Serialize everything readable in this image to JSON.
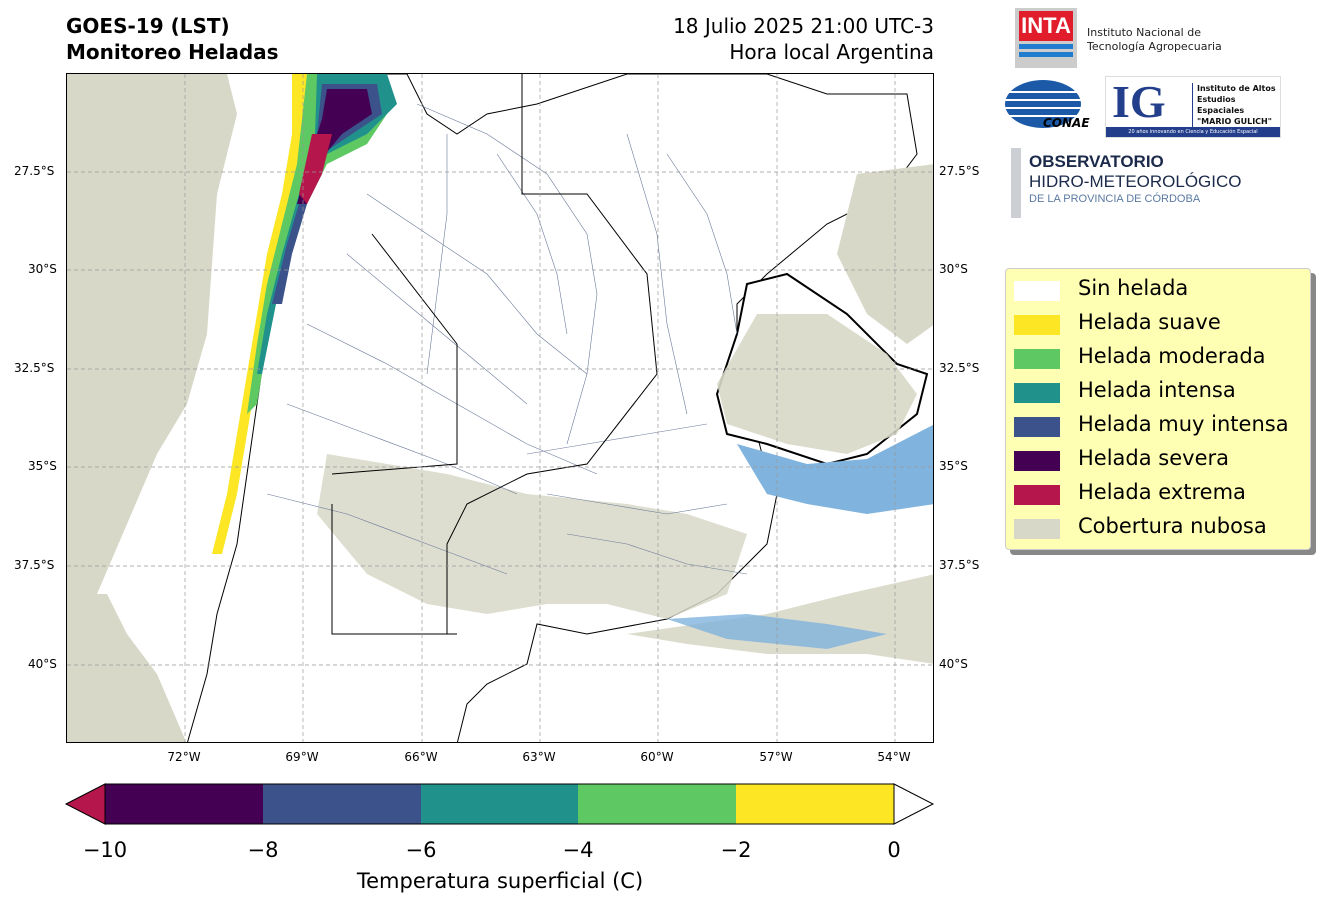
{
  "header": {
    "title_line1": "GOES-19 (LST)",
    "title_line2": "Monitoreo Heladas",
    "date_line": "18 Julio 2025 21:00 UTC-3",
    "local_line": "Hora local Argentina"
  },
  "map": {
    "lat_ticks": [
      "27.5°S",
      "30°S",
      "32.5°S",
      "35°S",
      "37.5°S",
      "40°S"
    ],
    "lon_ticks": [
      "72°W",
      "69°W",
      "66°W",
      "63°W",
      "60°W",
      "57°W",
      "54°W"
    ]
  },
  "logos": {
    "inta_mark": "INTA",
    "inta_name_1": "Instituto Nacional de",
    "inta_name_2": "Tecnología Agropecuaria",
    "conae": "CONAE",
    "ig_mark": "IG",
    "ig_name_1": "Instituto de Altos",
    "ig_name_2": "Estudios Espaciales",
    "ig_name_3": "\"MARIO GULICH\"",
    "ig_tagline": "20 años innovando en Ciencia y Educación Espacial",
    "obs_1": "OBSERVATORIO",
    "obs_2": "HIDRO-METEOROLÓGICO",
    "obs_3": "DE LA PROVINCIA DE CÓRDOBA"
  },
  "legend": {
    "items": [
      {
        "label": "Sin helada",
        "color": "#ffffff"
      },
      {
        "label": "Helada suave",
        "color": "#fde725"
      },
      {
        "label": "Helada moderada",
        "color": "#5ec962"
      },
      {
        "label": "Helada intensa",
        "color": "#21918c"
      },
      {
        "label": "Helada muy intensa",
        "color": "#3b528b"
      },
      {
        "label": "Helada severa",
        "color": "#440154"
      },
      {
        "label": "Helada extrema",
        "color": "#b5164b"
      },
      {
        "label": "Cobertura nubosa",
        "color": "#d8d8c8"
      }
    ]
  },
  "colorbar": {
    "ticks": [
      "−10",
      "−8",
      "−6",
      "−4",
      "−2",
      "0"
    ],
    "label": "Temperatura superficial (C)",
    "colors": [
      "#440154",
      "#3b528b",
      "#21918c",
      "#5ec962",
      "#fde725"
    ],
    "under_color": "#b5164b",
    "over_color": "#ffffff"
  }
}
